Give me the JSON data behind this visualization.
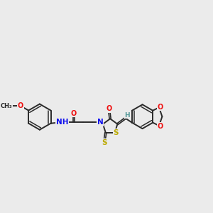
{
  "bg_color": "#ebebeb",
  "bond_color": "#2a2a2a",
  "atom_colors": {
    "O": "#ee1111",
    "N": "#1111ee",
    "S": "#bbaa00",
    "H": "#559999",
    "C": "#2a2a2a"
  },
  "figsize": [
    3.0,
    3.0
  ],
  "dpi": 100
}
